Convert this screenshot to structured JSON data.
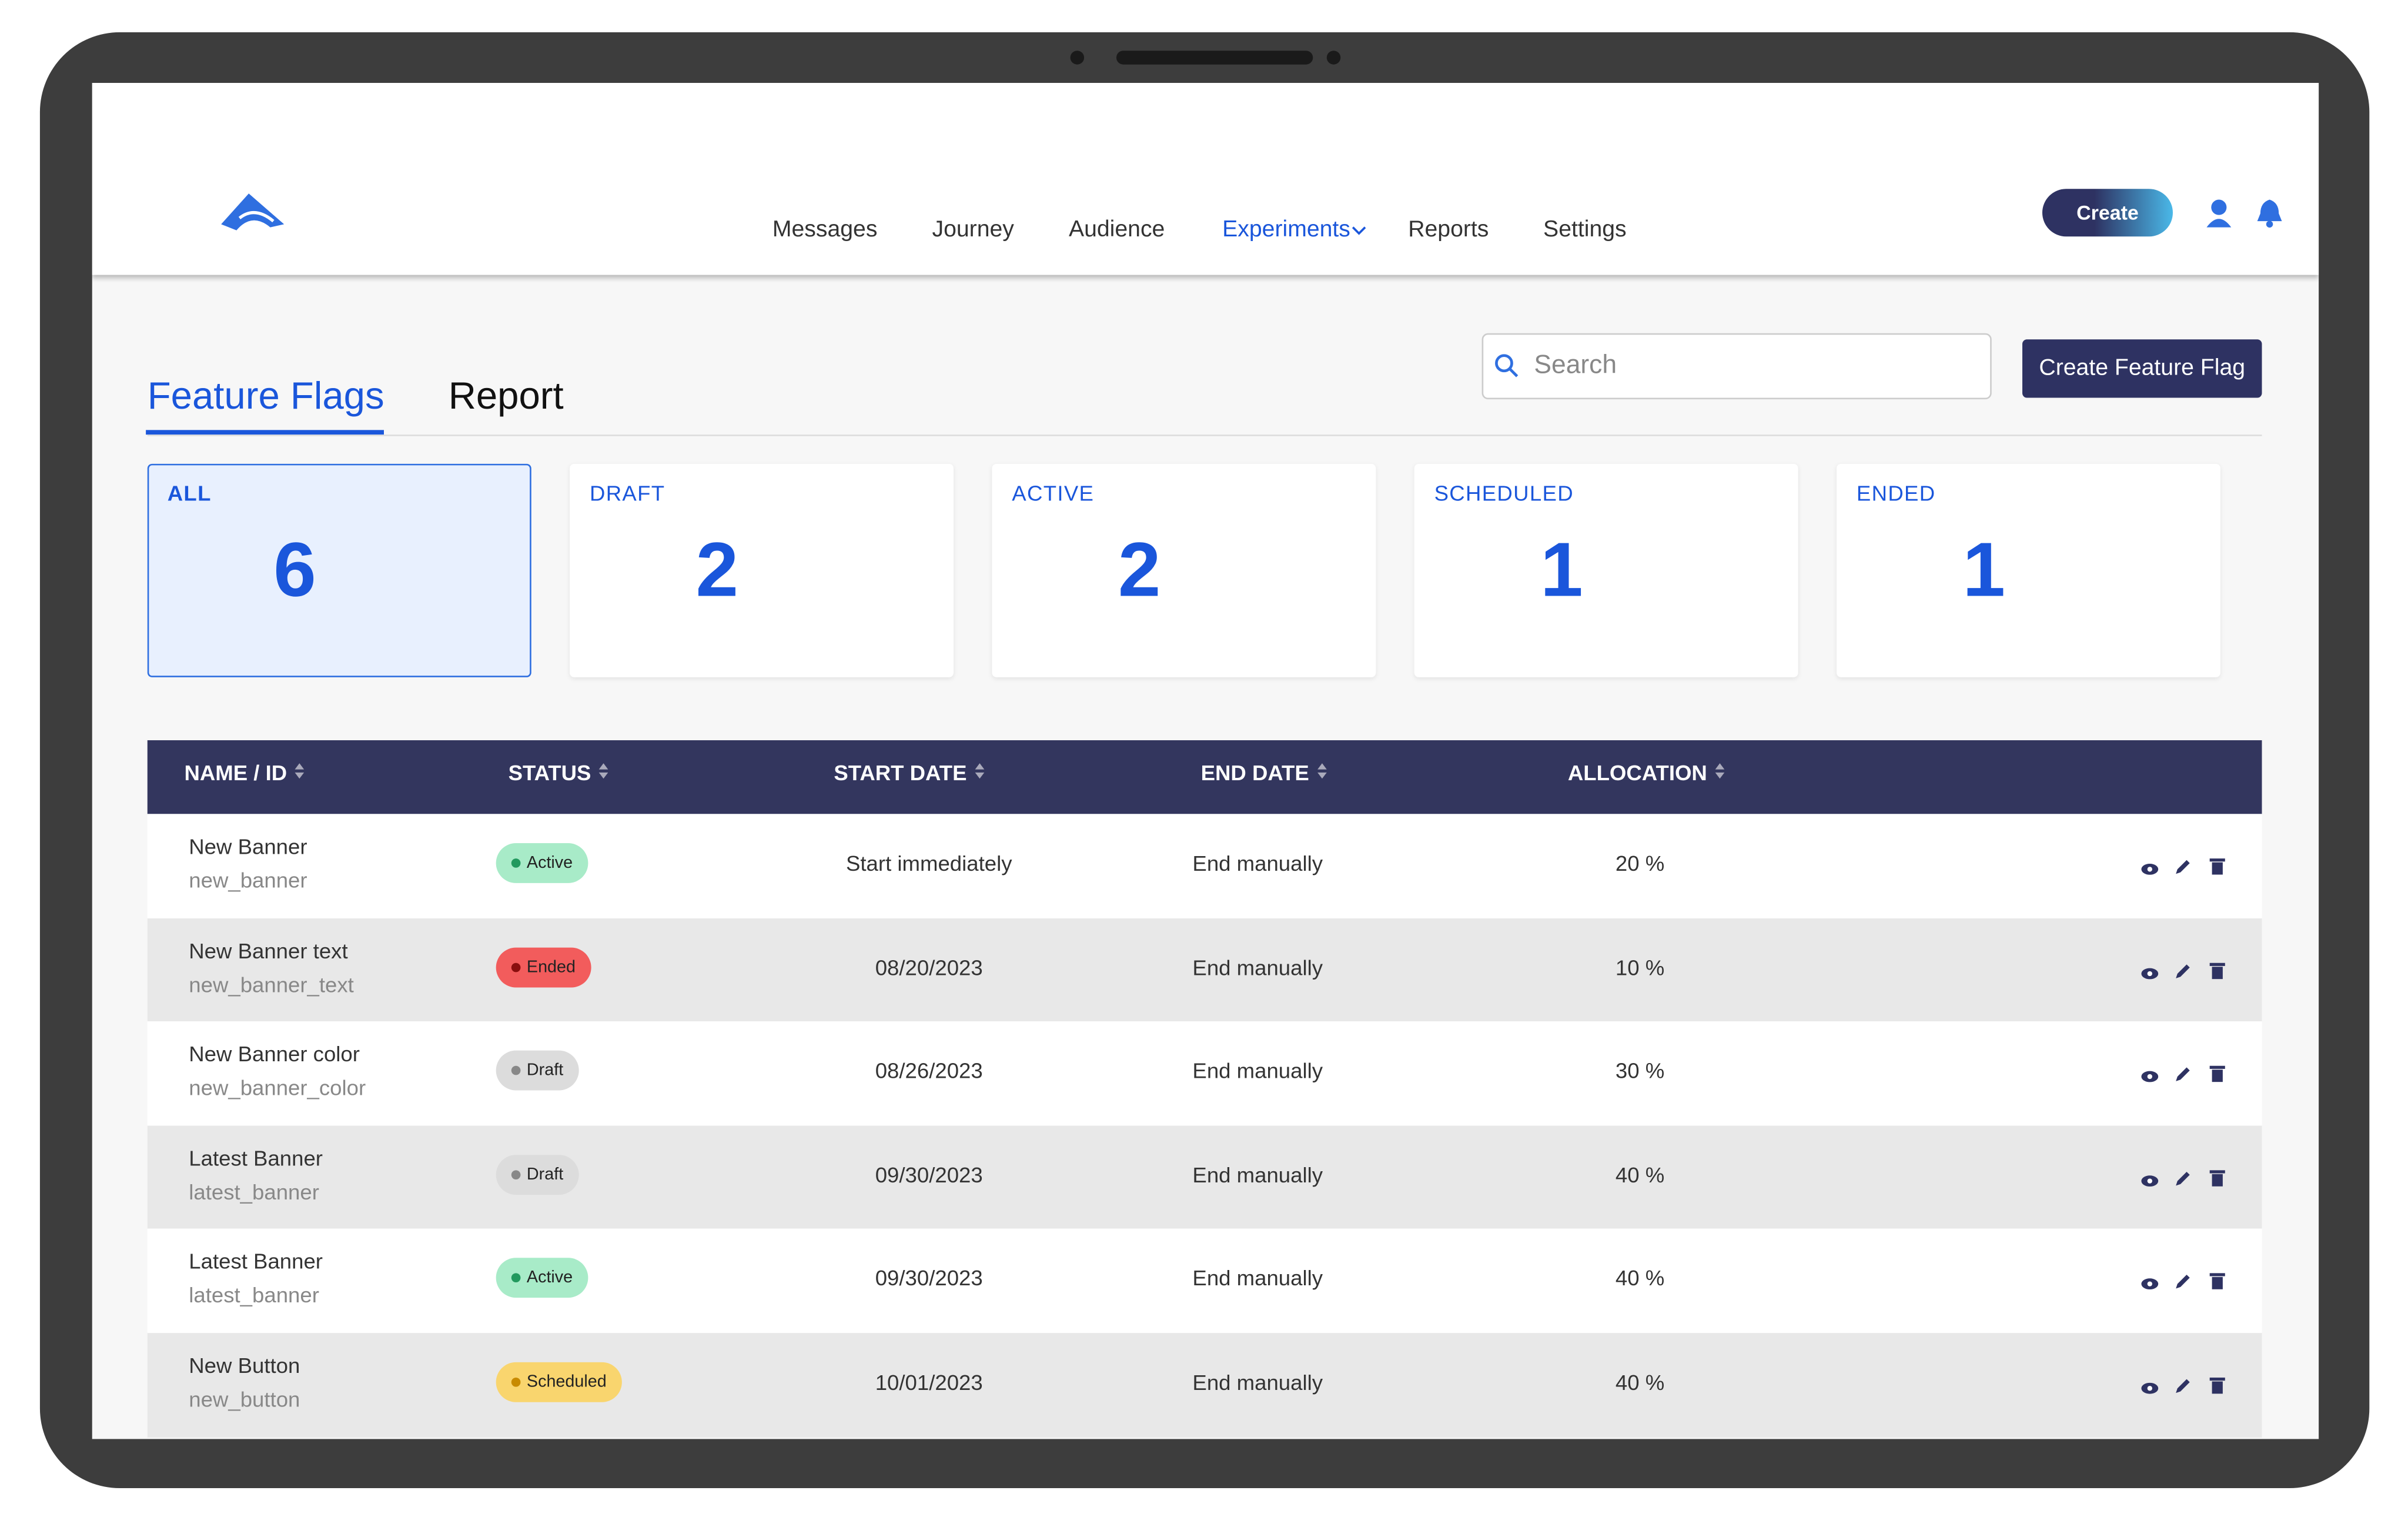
{
  "nav": {
    "items": [
      "Messages",
      "Journey",
      "Audience",
      "Experiments",
      "Reports",
      "Settings"
    ],
    "create": "Create"
  },
  "tabs": [
    "Feature Flags",
    "Report"
  ],
  "search_placeholder": "Search",
  "create_button": "Create Feature Flag",
  "summary": [
    {
      "label": "ALL",
      "count": 6
    },
    {
      "label": "DRAFT",
      "count": 2
    },
    {
      "label": "ACTIVE",
      "count": 2
    },
    {
      "label": "SCHEDULED",
      "count": 1
    },
    {
      "label": "ENDED",
      "count": 1
    }
  ],
  "table": {
    "headers": [
      "NAME / ID",
      "STATUS",
      "START DATE",
      "END DATE",
      "ALLOCATION"
    ],
    "rows": [
      {
        "name": "New Banner",
        "id": "new_banner",
        "status": "Active",
        "start": "Start immediately",
        "end": "End manually",
        "allocation": "20 %"
      },
      {
        "name": "New Banner text",
        "id": "new_banner_text",
        "status": "Ended",
        "start": "08/20/2023",
        "end": "End manually",
        "allocation": "10 %"
      },
      {
        "name": "New Banner color",
        "id": "new_banner_color",
        "status": "Draft",
        "start": "08/26/2023",
        "end": "End manually",
        "allocation": "30 %"
      },
      {
        "name": "Latest Banner",
        "id": "latest_banner",
        "status": "Draft",
        "start": "09/30/2023",
        "end": "End manually",
        "allocation": "40 %"
      },
      {
        "name": "Latest Banner",
        "id": "latest_banner",
        "status": "Active",
        "start": "09/30/2023",
        "end": "End manually",
        "allocation": "40 %"
      },
      {
        "name": "New Button",
        "id": "new_button",
        "status": "Scheduled",
        "start": "10/01/2023",
        "end": "End manually",
        "allocation": "40 %"
      }
    ]
  }
}
